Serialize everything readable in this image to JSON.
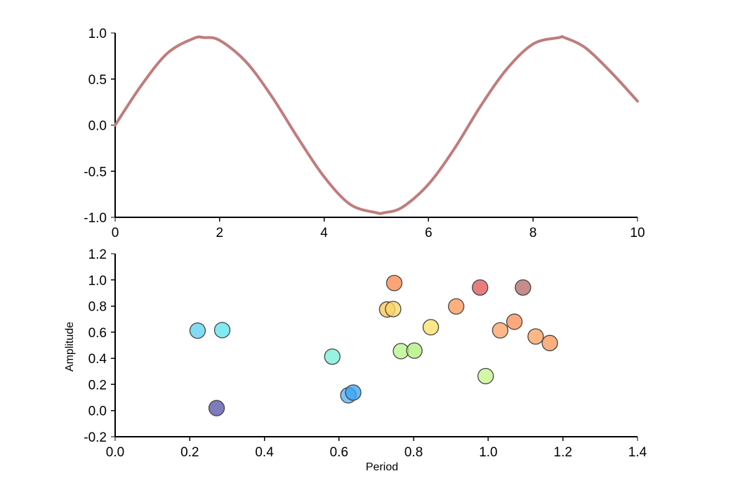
{
  "chart_data": [
    {
      "type": "line",
      "title": "",
      "xlabel": "",
      "ylabel": "",
      "xlim": [
        0,
        10
      ],
      "ylim": [
        -1.0,
        1.0
      ],
      "xticks": [
        "0",
        "2",
        "4",
        "6",
        "8",
        "10"
      ],
      "yticks": [
        "-1.0",
        "-0.5",
        "0.0",
        "0.5",
        "1.0"
      ],
      "grid": false,
      "line_color": "#c07c7c",
      "series": [
        {
          "x": [
            0,
            0.5,
            1.0,
            1.5,
            1.7,
            2.0,
            2.5,
            3.0,
            3.5,
            4.0,
            4.5,
            5.0,
            5.15,
            5.5,
            6.0,
            6.5,
            7.0,
            7.5,
            8.0,
            8.5,
            8.6,
            9.0,
            9.5,
            10.0
          ],
          "y": [
            0.0,
            0.43,
            0.78,
            0.94,
            0.95,
            0.92,
            0.69,
            0.31,
            -0.14,
            -0.56,
            -0.86,
            -0.95,
            -0.95,
            -0.89,
            -0.64,
            -0.25,
            0.21,
            0.61,
            0.88,
            0.95,
            0.95,
            0.84,
            0.57,
            0.26
          ]
        }
      ]
    },
    {
      "type": "scatter",
      "title": "",
      "xlabel": "Period",
      "ylabel": "Amplitude",
      "xlim": [
        0.0,
        1.4
      ],
      "ylim": [
        -0.2,
        1.2
      ],
      "xticks": [
        "0.0",
        "0.2",
        "0.4",
        "0.6",
        "0.8",
        "1.0",
        "1.2",
        "1.4"
      ],
      "yticks": [
        "-0.2",
        "0.0",
        "0.2",
        "0.4",
        "0.6",
        "0.8",
        "1.0",
        "1.2"
      ],
      "grid": false,
      "points": [
        {
          "x": 0.221,
          "y": 0.612,
          "color": "#5fd0f0"
        },
        {
          "x": 0.287,
          "y": 0.616,
          "color": "#5ee4f0"
        },
        {
          "x": 0.272,
          "y": 0.019,
          "color": "#5a57a8"
        },
        {
          "x": 0.582,
          "y": 0.413,
          "color": "#79eed8"
        },
        {
          "x": 0.625,
          "y": 0.117,
          "color": "#55b4f2"
        },
        {
          "x": 0.638,
          "y": 0.138,
          "color": "#3aa4f4"
        },
        {
          "x": 0.729,
          "y": 0.774,
          "color": "#fcc856"
        },
        {
          "x": 0.745,
          "y": 0.777,
          "color": "#f8d66c"
        },
        {
          "x": 0.748,
          "y": 0.976,
          "color": "#fa8a50"
        },
        {
          "x": 0.766,
          "y": 0.455,
          "color": "#b8f48a"
        },
        {
          "x": 0.802,
          "y": 0.459,
          "color": "#b2f07c"
        },
        {
          "x": 0.846,
          "y": 0.638,
          "color": "#fee066"
        },
        {
          "x": 0.914,
          "y": 0.797,
          "color": "#fc9a5a"
        },
        {
          "x": 0.978,
          "y": 0.942,
          "color": "#e05a5a"
        },
        {
          "x": 0.993,
          "y": 0.264,
          "color": "#c4f68e"
        },
        {
          "x": 1.032,
          "y": 0.614,
          "color": "#fea366"
        },
        {
          "x": 1.07,
          "y": 0.68,
          "color": "#fb8f59"
        },
        {
          "x": 1.093,
          "y": 0.942,
          "color": "#b86a6a"
        },
        {
          "x": 1.127,
          "y": 0.567,
          "color": "#fca262"
        },
        {
          "x": 1.165,
          "y": 0.517,
          "color": "#fb9a5a"
        }
      ]
    }
  ]
}
